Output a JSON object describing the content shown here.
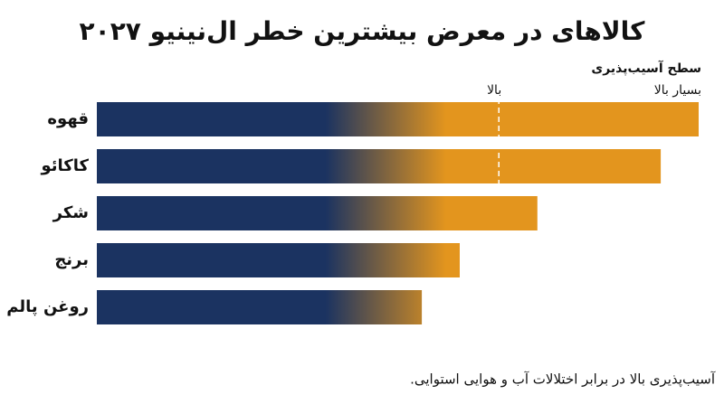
{
  "chart_data": {
    "type": "bar",
    "orientation": "horizontal",
    "title": "کالاهای در معرض بیشترین خطر ال‌نینیو ۲۰۲۷",
    "x_label": "سطح آسیب‌پذیری",
    "categories": [
      "قهوه",
      "کاکائو",
      "شکر",
      "برنج",
      "روغن پالم"
    ],
    "values": [
      100,
      93.7,
      73.2,
      60.3,
      54
    ],
    "colors": [
      "#1b3361",
      "#e3951e"
    ],
    "xlim": [
      0,
      100
    ],
    "xticks": [
      {
        "value": 66.8,
        "label": "بالا"
      },
      {
        "value": 100,
        "label": "بسیار بالا"
      }
    ],
    "footnote": "آسیب‌پذیری بالا در برابر اختلالات آب و هوایی استوایی."
  }
}
